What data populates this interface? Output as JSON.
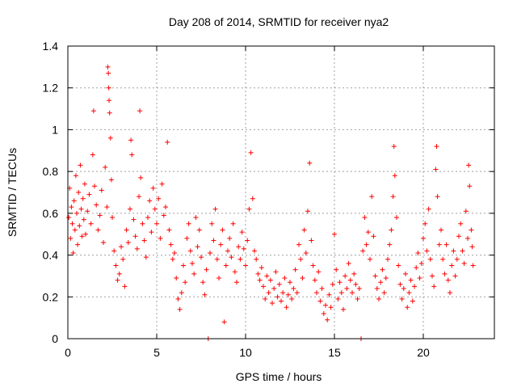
{
  "chart_data": {
    "type": "scatter",
    "title": "Day 208 of 2014, SRMTID for receiver nya2",
    "xlabel": "GPS time / hours",
    "ylabel": "SRMTID / TECUs",
    "xlim": [
      0,
      24
    ],
    "ylim": [
      0,
      1.4
    ],
    "xticks": [
      0,
      5,
      10,
      15,
      20
    ],
    "xtick_labels": [
      "0",
      "5",
      "10",
      "15",
      "20"
    ],
    "yticks": [
      0,
      0.2,
      0.4,
      0.6,
      0.8,
      1.0,
      1.2,
      1.4
    ],
    "ytick_labels": [
      "0",
      "0.2",
      "0.4",
      "0.6",
      "0.8",
      "1",
      "1.2",
      "1.4"
    ],
    "grid": true,
    "marker": "+",
    "color": "#ff0000",
    "series": [
      {
        "name": "nya2",
        "points": [
          [
            0.05,
            0.58
          ],
          [
            0.1,
            0.72
          ],
          [
            0.15,
            0.48
          ],
          [
            0.2,
            0.63
          ],
          [
            0.25,
            0.55
          ],
          [
            0.3,
            0.41
          ],
          [
            0.35,
            0.66
          ],
          [
            0.4,
            0.52
          ],
          [
            0.45,
            0.78
          ],
          [
            0.5,
            0.6
          ],
          [
            0.55,
            0.45
          ],
          [
            0.6,
            0.7
          ],
          [
            0.65,
            0.54
          ],
          [
            0.7,
            0.83
          ],
          [
            0.75,
            0.62
          ],
          [
            0.8,
            0.49
          ],
          [
            0.85,
            0.67
          ],
          [
            0.9,
            0.57
          ],
          [
            0.95,
            0.74
          ],
          [
            1.0,
            0.5
          ],
          [
            1.1,
            0.61
          ],
          [
            1.2,
            0.69
          ],
          [
            1.3,
            0.55
          ],
          [
            1.4,
            0.88
          ],
          [
            1.45,
            1.09
          ],
          [
            1.5,
            0.73
          ],
          [
            1.6,
            0.64
          ],
          [
            1.7,
            0.52
          ],
          [
            1.8,
            0.59
          ],
          [
            1.9,
            0.71
          ],
          [
            2.0,
            0.46
          ],
          [
            2.1,
            0.82
          ],
          [
            2.2,
            0.63
          ],
          [
            2.25,
            1.3
          ],
          [
            2.28,
            1.27
          ],
          [
            2.3,
            1.2
          ],
          [
            2.32,
            1.14
          ],
          [
            2.35,
            1.08
          ],
          [
            2.4,
            0.96
          ],
          [
            2.45,
            0.76
          ],
          [
            2.5,
            0.58
          ],
          [
            2.6,
            0.42
          ],
          [
            2.7,
            0.35
          ],
          [
            2.8,
            0.28
          ],
          [
            2.9,
            0.31
          ],
          [
            3.0,
            0.44
          ],
          [
            3.1,
            0.38
          ],
          [
            3.2,
            0.25
          ],
          [
            3.3,
            0.52
          ],
          [
            3.4,
            0.46
          ],
          [
            3.5,
            0.62
          ],
          [
            3.55,
            0.95
          ],
          [
            3.6,
            0.88
          ],
          [
            3.7,
            0.57
          ],
          [
            3.8,
            0.49
          ],
          [
            3.9,
            0.43
          ],
          [
            4.0,
            0.68
          ],
          [
            4.05,
            1.09
          ],
          [
            4.1,
            0.77
          ],
          [
            4.2,
            0.55
          ],
          [
            4.3,
            0.47
          ],
          [
            4.4,
            0.39
          ],
          [
            4.5,
            0.58
          ],
          [
            4.6,
            0.66
          ],
          [
            4.7,
            0.51
          ],
          [
            4.8,
            0.72
          ],
          [
            4.9,
            0.62
          ],
          [
            5.0,
            0.55
          ],
          [
            5.1,
            0.67
          ],
          [
            5.2,
            0.48
          ],
          [
            5.3,
            0.74
          ],
          [
            5.4,
            0.59
          ],
          [
            5.5,
            0.63
          ],
          [
            5.6,
            0.94
          ],
          [
            5.7,
            0.52
          ],
          [
            5.8,
            0.45
          ],
          [
            5.9,
            0.38
          ],
          [
            6.0,
            0.41
          ],
          [
            6.1,
            0.29
          ],
          [
            6.2,
            0.19
          ],
          [
            6.3,
            0.14
          ],
          [
            6.4,
            0.22
          ],
          [
            6.5,
            0.35
          ],
          [
            6.6,
            0.27
          ],
          [
            6.7,
            0.48
          ],
          [
            6.8,
            0.55
          ],
          [
            6.9,
            0.42
          ],
          [
            7.0,
            0.36
          ],
          [
            7.1,
            0.31
          ],
          [
            7.2,
            0.58
          ],
          [
            7.3,
            0.44
          ],
          [
            7.4,
            0.52
          ],
          [
            7.5,
            0.39
          ],
          [
            7.6,
            0.27
          ],
          [
            7.7,
            0.21
          ],
          [
            7.8,
            0.33
          ],
          [
            7.9,
            0.0
          ],
          [
            8.0,
            0.41
          ],
          [
            8.1,
            0.55
          ],
          [
            8.2,
            0.47
          ],
          [
            8.3,
            0.62
          ],
          [
            8.4,
            0.38
          ],
          [
            8.5,
            0.29
          ],
          [
            8.6,
            0.45
          ],
          [
            8.7,
            0.52
          ],
          [
            8.8,
            0.08
          ],
          [
            8.9,
            0.35
          ],
          [
            9.0,
            0.42
          ],
          [
            9.1,
            0.48
          ],
          [
            9.2,
            0.39
          ],
          [
            9.3,
            0.55
          ],
          [
            9.4,
            0.32
          ],
          [
            9.5,
            0.27
          ],
          [
            9.6,
            0.44
          ],
          [
            9.7,
            0.38
          ],
          [
            9.8,
            0.51
          ],
          [
            9.9,
            0.43
          ],
          [
            10.0,
            0.35
          ],
          [
            10.1,
            0.47
          ],
          [
            10.2,
            0.62
          ],
          [
            10.3,
            0.89
          ],
          [
            10.4,
            0.67
          ],
          [
            10.5,
            0.42
          ],
          [
            10.6,
            0.38
          ],
          [
            10.7,
            0.31
          ],
          [
            10.8,
            0.28
          ],
          [
            10.9,
            0.34
          ],
          [
            11.0,
            0.25
          ],
          [
            11.1,
            0.19
          ],
          [
            11.2,
            0.3
          ],
          [
            11.3,
            0.22
          ],
          [
            11.4,
            0.28
          ],
          [
            11.5,
            0.17
          ],
          [
            11.6,
            0.24
          ],
          [
            11.7,
            0.32
          ],
          [
            11.8,
            0.2
          ],
          [
            11.9,
            0.26
          ],
          [
            12.0,
            0.18
          ],
          [
            12.1,
            0.22
          ],
          [
            12.2,
            0.29
          ],
          [
            12.3,
            0.15
          ],
          [
            12.4,
            0.21
          ],
          [
            12.5,
            0.27
          ],
          [
            12.6,
            0.19
          ],
          [
            12.7,
            0.24
          ],
          [
            12.8,
            0.33
          ],
          [
            12.9,
            0.22
          ],
          [
            13.0,
            0.45
          ],
          [
            13.1,
            0.38
          ],
          [
            13.2,
            0.29
          ],
          [
            13.3,
            0.52
          ],
          [
            13.4,
            0.41
          ],
          [
            13.5,
            0.61
          ],
          [
            13.6,
            0.84
          ],
          [
            13.7,
            0.47
          ],
          [
            13.8,
            0.35
          ],
          [
            13.9,
            0.28
          ],
          [
            14.0,
            0.22
          ],
          [
            14.1,
            0.32
          ],
          [
            14.2,
            0.18
          ],
          [
            14.3,
            0.24
          ],
          [
            14.4,
            0.12
          ],
          [
            14.5,
            0.16
          ],
          [
            14.6,
            0.09
          ],
          [
            14.7,
            0.21
          ],
          [
            14.8,
            0.15
          ],
          [
            14.9,
            0.26
          ],
          [
            15.0,
            0.5
          ],
          [
            15.1,
            0.33
          ],
          [
            15.2,
            0.19
          ],
          [
            15.3,
            0.27
          ],
          [
            15.4,
            0.22
          ],
          [
            15.5,
            0.14
          ],
          [
            15.6,
            0.3
          ],
          [
            15.7,
            0.24
          ],
          [
            15.8,
            0.36
          ],
          [
            15.9,
            0.28
          ],
          [
            16.0,
            0.22
          ],
          [
            16.1,
            0.31
          ],
          [
            16.2,
            0.26
          ],
          [
            16.3,
            0.19
          ],
          [
            16.4,
            0.24
          ],
          [
            16.5,
            0.0
          ],
          [
            16.6,
            0.42
          ],
          [
            16.7,
            0.58
          ],
          [
            16.8,
            0.45
          ],
          [
            16.9,
            0.51
          ],
          [
            17.0,
            0.38
          ],
          [
            17.1,
            0.68
          ],
          [
            17.2,
            0.49
          ],
          [
            17.3,
            0.3
          ],
          [
            17.4,
            0.24
          ],
          [
            17.5,
            0.19
          ],
          [
            17.6,
            0.27
          ],
          [
            17.7,
            0.33
          ],
          [
            17.8,
            0.22
          ],
          [
            17.9,
            0.29
          ],
          [
            18.0,
            0.38
          ],
          [
            18.1,
            0.45
          ],
          [
            18.2,
            0.52
          ],
          [
            18.3,
            0.68
          ],
          [
            18.35,
            0.92
          ],
          [
            18.4,
            0.78
          ],
          [
            18.5,
            0.58
          ],
          [
            18.6,
            0.35
          ],
          [
            18.7,
            0.26
          ],
          [
            18.8,
            0.19
          ],
          [
            18.9,
            0.24
          ],
          [
            19.0,
            0.31
          ],
          [
            19.1,
            0.15
          ],
          [
            19.2,
            0.22
          ],
          [
            19.3,
            0.28
          ],
          [
            19.4,
            0.18
          ],
          [
            19.5,
            0.25
          ],
          [
            19.6,
            0.34
          ],
          [
            19.7,
            0.41
          ],
          [
            19.8,
            0.29
          ],
          [
            19.9,
            0.36
          ],
          [
            20.0,
            0.48
          ],
          [
            20.1,
            0.55
          ],
          [
            20.2,
            0.42
          ],
          [
            20.3,
            0.62
          ],
          [
            20.4,
            0.38
          ],
          [
            20.5,
            0.3
          ],
          [
            20.6,
            0.25
          ],
          [
            20.7,
            0.81
          ],
          [
            20.75,
            0.92
          ],
          [
            20.8,
            0.68
          ],
          [
            20.9,
            0.45
          ],
          [
            21.0,
            0.52
          ],
          [
            21.1,
            0.38
          ],
          [
            21.2,
            0.31
          ],
          [
            21.3,
            0.45
          ],
          [
            21.4,
            0.28
          ],
          [
            21.5,
            0.22
          ],
          [
            21.6,
            0.35
          ],
          [
            21.7,
            0.42
          ],
          [
            21.8,
            0.3
          ],
          [
            21.9,
            0.38
          ],
          [
            22.0,
            0.49
          ],
          [
            22.1,
            0.55
          ],
          [
            22.2,
            0.42
          ],
          [
            22.3,
            0.36
          ],
          [
            22.4,
            0.61
          ],
          [
            22.5,
            0.48
          ],
          [
            22.55,
            0.83
          ],
          [
            22.6,
            0.73
          ],
          [
            22.7,
            0.52
          ],
          [
            22.75,
            0.44
          ],
          [
            22.8,
            0.35
          ]
        ]
      }
    ]
  }
}
